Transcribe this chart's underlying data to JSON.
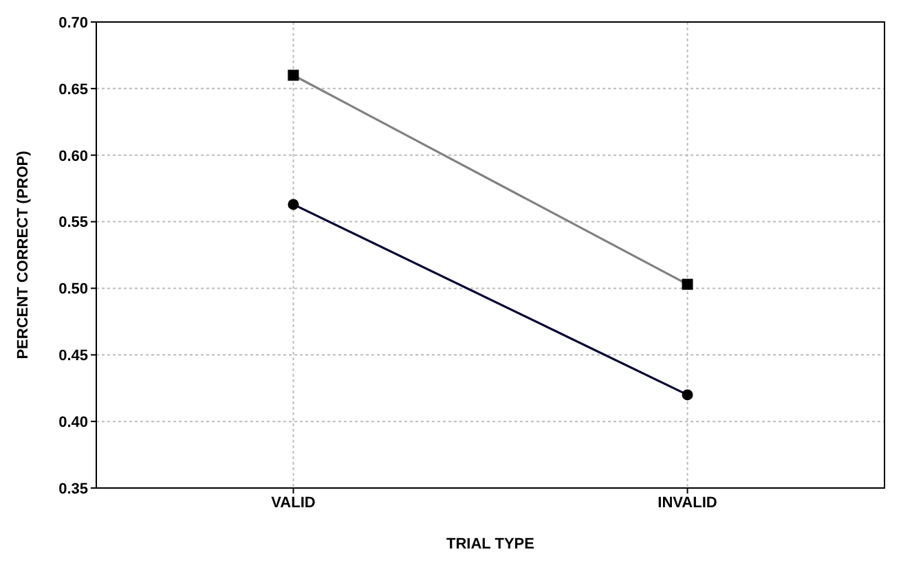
{
  "chart_data": {
    "type": "line",
    "xlabel": "TRIAL TYPE",
    "ylabel": "PERCENT CORRECT (PROP)",
    "categories": [
      "VALID",
      "INVALID"
    ],
    "series": [
      {
        "color": "#808080",
        "values": [
          0.66,
          0.503
        ],
        "marker": "square"
      },
      {
        "color": "#000033",
        "values": [
          0.563,
          0.42
        ],
        "marker": "circle"
      }
    ],
    "ylim": [
      0.35,
      0.7
    ],
    "yticks": [
      {
        "value": 0.35,
        "label": "0.35"
      },
      {
        "value": 0.4,
        "label": "0.40"
      },
      {
        "value": 0.45,
        "label": "0.45"
      },
      {
        "value": 0.5,
        "label": "0.50"
      },
      {
        "value": 0.55,
        "label": "0.55"
      },
      {
        "value": 0.6,
        "label": "0.60"
      },
      {
        "value": 0.65,
        "label": "0.65"
      },
      {
        "value": 0.7,
        "label": "0.70"
      }
    ],
    "grid": true,
    "legend": false,
    "line_style": "solid"
  }
}
